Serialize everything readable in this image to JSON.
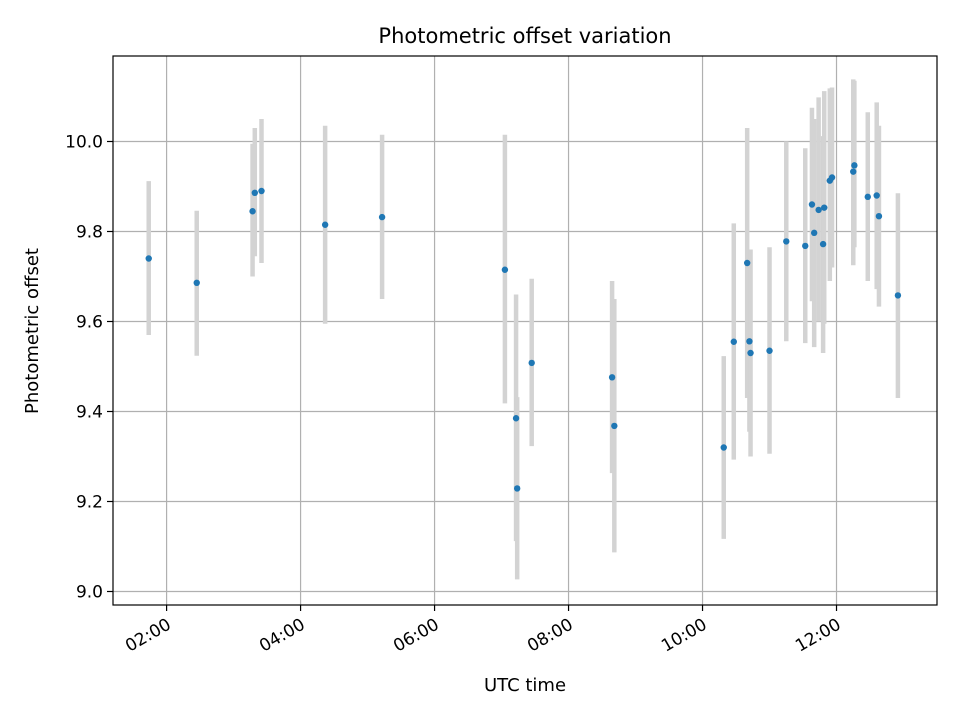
{
  "chart_data": {
    "type": "scatter",
    "title": "Photometric offset variation",
    "xlabel": "UTC time",
    "ylabel": "Photometric offset",
    "x_is_time": true,
    "xlim": [
      "01:12",
      "13:30"
    ],
    "ylim": [
      8.97,
      10.19
    ],
    "xticks": [
      "02:00",
      "04:00",
      "06:00",
      "08:00",
      "10:00",
      "12:00"
    ],
    "yticks": [
      "9.0",
      "9.2",
      "9.4",
      "9.6",
      "9.8",
      "10.0"
    ],
    "grid": true,
    "colors": {
      "point": "#1f77b4",
      "errorbar": "#d3d3d3",
      "grid": "#b0b0b0"
    },
    "points": [
      {
        "x": "01:44",
        "y": 9.74,
        "lo": 9.57,
        "hi": 9.912
      },
      {
        "x": "02:27",
        "y": 9.686,
        "lo": 9.524,
        "hi": 9.846
      },
      {
        "x": "03:17",
        "y": 9.845,
        "lo": 9.7,
        "hi": 9.995
      },
      {
        "x": "03:19",
        "y": 9.886,
        "lo": 9.745,
        "hi": 10.03
      },
      {
        "x": "03:25",
        "y": 9.89,
        "lo": 9.73,
        "hi": 10.05
      },
      {
        "x": "04:22",
        "y": 9.815,
        "lo": 9.595,
        "hi": 10.035
      },
      {
        "x": "05:13",
        "y": 9.832,
        "lo": 9.65,
        "hi": 10.015
      },
      {
        "x": "07:03",
        "y": 9.715,
        "lo": 9.418,
        "hi": 10.015
      },
      {
        "x": "07:13",
        "y": 9.385,
        "lo": 9.112,
        "hi": 9.66
      },
      {
        "x": "07:14",
        "y": 9.229,
        "lo": 9.027,
        "hi": 9.432
      },
      {
        "x": "07:27",
        "y": 9.508,
        "lo": 9.323,
        "hi": 9.695
      },
      {
        "x": "08:39",
        "y": 9.476,
        "lo": 9.263,
        "hi": 9.69
      },
      {
        "x": "08:41",
        "y": 9.368,
        "lo": 9.087,
        "hi": 9.65
      },
      {
        "x": "10:19",
        "y": 9.32,
        "lo": 9.117,
        "hi": 9.523
      },
      {
        "x": "10:28",
        "y": 9.555,
        "lo": 9.293,
        "hi": 9.818
      },
      {
        "x": "10:40",
        "y": 9.73,
        "lo": 9.43,
        "hi": 10.03
      },
      {
        "x": "10:42",
        "y": 9.556,
        "lo": 9.355,
        "hi": 9.757
      },
      {
        "x": "10:43",
        "y": 9.53,
        "lo": 9.3,
        "hi": 9.76
      },
      {
        "x": "11:00",
        "y": 9.535,
        "lo": 9.306,
        "hi": 9.765
      },
      {
        "x": "11:15",
        "y": 9.778,
        "lo": 9.556,
        "hi": 10.0
      },
      {
        "x": "11:32",
        "y": 9.768,
        "lo": 9.552,
        "hi": 9.985
      },
      {
        "x": "11:38",
        "y": 9.86,
        "lo": 9.645,
        "hi": 10.075
      },
      {
        "x": "11:40",
        "y": 9.797,
        "lo": 9.543,
        "hi": 10.05
      },
      {
        "x": "11:44",
        "y": 9.848,
        "lo": 9.6,
        "hi": 10.098
      },
      {
        "x": "11:48",
        "y": 9.772,
        "lo": 9.53,
        "hi": 10.012
      },
      {
        "x": "11:49",
        "y": 9.853,
        "lo": 9.595,
        "hi": 10.112
      },
      {
        "x": "11:54",
        "y": 9.913,
        "lo": 9.69,
        "hi": 10.118
      },
      {
        "x": "11:56",
        "y": 9.92,
        "lo": 9.72,
        "hi": 10.12
      },
      {
        "x": "12:15",
        "y": 9.933,
        "lo": 9.725,
        "hi": 10.138
      },
      {
        "x": "12:16",
        "y": 9.947,
        "lo": 9.765,
        "hi": 10.135
      },
      {
        "x": "12:28",
        "y": 9.877,
        "lo": 9.69,
        "hi": 10.065
      },
      {
        "x": "12:36",
        "y": 9.88,
        "lo": 9.672,
        "hi": 10.087
      },
      {
        "x": "12:38",
        "y": 9.834,
        "lo": 9.633,
        "hi": 10.035
      },
      {
        "x": "12:55",
        "y": 9.658,
        "lo": 9.43,
        "hi": 9.885
      }
    ]
  }
}
